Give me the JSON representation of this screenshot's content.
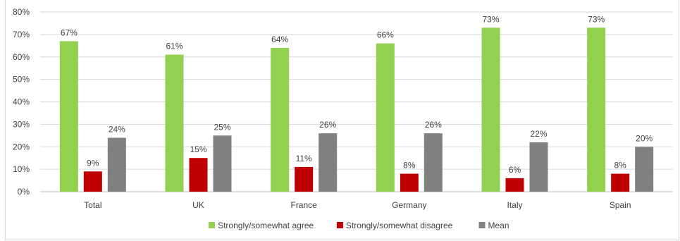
{
  "chart_data": {
    "type": "bar",
    "categories": [
      "Total",
      "UK",
      "France",
      "Germany",
      "Italy",
      "Spain"
    ],
    "series": [
      {
        "name": "Strongly/somewhat agree",
        "values": [
          67,
          61,
          64,
          66,
          73,
          73
        ],
        "labels": [
          "67%",
          "61%",
          "64%",
          "66%",
          "73%",
          "73%"
        ],
        "color": "#92d050"
      },
      {
        "name": "Strongly/somewhat disagree",
        "values": [
          9,
          15,
          11,
          8,
          6,
          8
        ],
        "labels": [
          "9%",
          "15%",
          "11%",
          "8%",
          "6%",
          "8%"
        ],
        "color": "#c00000"
      },
      {
        "name": "Mean",
        "values": [
          24,
          25,
          26,
          26,
          22,
          20
        ],
        "labels": [
          "24%",
          "25%",
          "26%",
          "26%",
          "22%",
          "20%"
        ],
        "color": "#808080"
      }
    ],
    "y_ticks": [
      "0%",
      "10%",
      "20%",
      "30%",
      "40%",
      "50%",
      "60%",
      "70%",
      "80%"
    ],
    "ylim": [
      0,
      80
    ],
    "grid": true,
    "legend": "bottom-center"
  }
}
